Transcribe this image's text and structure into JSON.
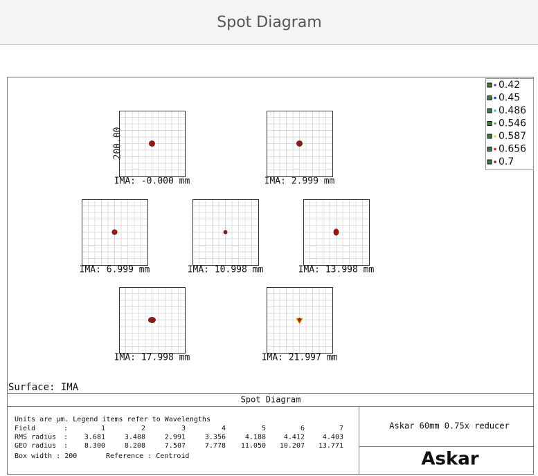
{
  "header": {
    "title": "Spot Diagram"
  },
  "legend": [
    {
      "label": "0.42",
      "color": "#8a2be2"
    },
    {
      "label": "0.45",
      "color": "#1f3fd0"
    },
    {
      "label": "0.486",
      "color": "#19d6d6"
    },
    {
      "label": "0.546",
      "color": "#34c234"
    },
    {
      "label": "0.587",
      "color": "#e6e01e"
    },
    {
      "label": "0.656",
      "color": "#e02020"
    },
    {
      "label": "0.7",
      "color": "#8b1a1a"
    }
  ],
  "scale_label": "200.00",
  "fields": [
    {
      "label": "IMA: -0.000 mm"
    },
    {
      "label": "IMA: 2.999 mm"
    },
    {
      "label": "IMA: 6.999 mm"
    },
    {
      "label": "IMA: 10.998 mm"
    },
    {
      "label": "IMA: 13.998 mm"
    },
    {
      "label": "IMA: 17.998 mm"
    },
    {
      "label": "IMA: 21.997 mm"
    }
  ],
  "surface": "Surface: IMA",
  "footer": {
    "title": "Spot Diagram",
    "note": "Units are µm. Legend items refer to Wavelengths",
    "table": {
      "rows": [
        {
          "label": "Field",
          "sep": ":",
          "values": [
            "1",
            "2",
            "3",
            "4",
            "5",
            "6",
            "7"
          ]
        },
        {
          "label": "RMS radius",
          "sep": ":",
          "values": [
            "3.681",
            "3.488",
            "2.991",
            "3.356",
            "4.188",
            "4.412",
            "4.403"
          ]
        },
        {
          "label": "GEO radius",
          "sep": ":",
          "values": [
            "8.300",
            "8.208",
            "7.507",
            "7.778",
            "11.050",
            "10.207",
            "13.771"
          ]
        }
      ]
    },
    "box_width": "Box width  : 200",
    "reference": "Reference  : Centroid",
    "description": "Askar 60mm 0.75x reducer",
    "logo": "Askar"
  }
}
